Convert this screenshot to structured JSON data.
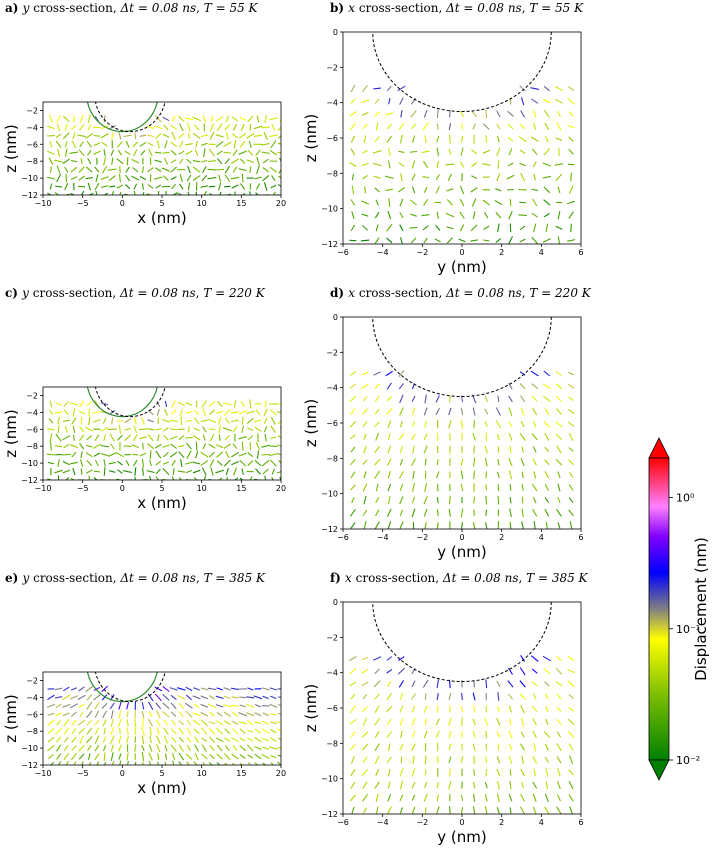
{
  "chart_data": [
    {
      "id": "a",
      "type": "quiver",
      "title": {
        "letter": "a)",
        "axis": "y",
        "text": " cross-section, ",
        "dt": "Δt = 0.08 ns",
        "sep": ", ",
        "temp": "T = 55 K"
      },
      "xlabel": "x (nm)",
      "ylabel": "z (nm)",
      "xlim": [
        -10,
        20
      ],
      "ylim": [
        -12,
        -1
      ],
      "xticks": [
        -10,
        -5,
        0,
        5,
        10,
        15,
        20
      ],
      "yticks": [
        -2,
        -4,
        -6,
        -8,
        -10,
        -12
      ],
      "xtick_labels": [
        "−10",
        "−5",
        "0",
        "5",
        "10",
        "15",
        "20"
      ],
      "ytick_labels": [
        "−2",
        "−4",
        "−6",
        "−8",
        "−10",
        "−12"
      ],
      "tip_circle": {
        "center": [
          1,
          0
        ],
        "radius": 4.5,
        "style": "dashed",
        "color": "#000000"
      },
      "solid_circle": {
        "center": [
          0,
          0
        ],
        "radius": 4.5,
        "color": "#2e8b2e"
      },
      "field": {
        "nx": 31,
        "x_range": [
          -9,
          20
        ],
        "z_range": [
          -3,
          -12
        ],
        "nz": 10,
        "pattern": "disordered",
        "level_surface": 0.06,
        "level_deep": 0.015
      }
    },
    {
      "id": "b",
      "type": "quiver",
      "title": {
        "letter": "b)",
        "axis": "x",
        "text": " cross-section, ",
        "dt": "Δt = 0.08 ns",
        "sep": ", ",
        "temp": "T = 55 K"
      },
      "xlabel": "y (nm)",
      "ylabel": "z (nm)",
      "xlim": [
        -6,
        6
      ],
      "ylim": [
        -12,
        0
      ],
      "xticks": [
        -6,
        -4,
        -2,
        0,
        2,
        4,
        6
      ],
      "yticks": [
        0,
        -2,
        -4,
        -6,
        -8,
        -10,
        -12
      ],
      "xtick_labels": [
        "−6",
        "−4",
        "−2",
        "0",
        "2",
        "4",
        "6"
      ],
      "ytick_labels": [
        "0",
        "−2",
        "−4",
        "−6",
        "−8",
        "−10",
        "−12"
      ],
      "tip_circle": {
        "center": [
          0,
          0
        ],
        "radius": 4.5,
        "style": "dashed",
        "color": "#000000"
      },
      "field": {
        "nx": 19,
        "x_range": [
          -5.5,
          5.5
        ],
        "z_range": [
          -3.2,
          -11.8
        ],
        "nz": 13,
        "pattern": "radial-weak",
        "level_surface": 0.09,
        "level_deep": 0.015
      }
    },
    {
      "id": "c",
      "type": "quiver",
      "title": {
        "letter": "c)",
        "axis": "y",
        "text": " cross-section, ",
        "dt": "Δt = 0.08 ns",
        "sep": ", ",
        "temp": "T = 220 K"
      },
      "xlabel": "x (nm)",
      "ylabel": "z (nm)",
      "xlim": [
        -10,
        20
      ],
      "ylim": [
        -12,
        -1
      ],
      "xticks": [
        -10,
        -5,
        0,
        5,
        10,
        15,
        20
      ],
      "yticks": [
        -2,
        -4,
        -6,
        -8,
        -10,
        -12
      ],
      "xtick_labels": [
        "−10",
        "−5",
        "0",
        "5",
        "10",
        "15",
        "20"
      ],
      "ytick_labels": [
        "−2",
        "−4",
        "−6",
        "−8",
        "−10",
        "−12"
      ],
      "tip_circle": {
        "center": [
          1,
          0
        ],
        "radius": 4.5,
        "style": "dashed",
        "color": "#000000"
      },
      "solid_circle": {
        "center": [
          0,
          0
        ],
        "radius": 4.5,
        "color": "#2e8b2e"
      },
      "field": {
        "nx": 31,
        "x_range": [
          -9,
          20
        ],
        "z_range": [
          -3,
          -12
        ],
        "nz": 10,
        "pattern": "disordered",
        "level_surface": 0.07,
        "level_deep": 0.015
      }
    },
    {
      "id": "d",
      "type": "quiver",
      "title": {
        "letter": "d)",
        "axis": "x",
        "text": " cross-section, ",
        "dt": "Δt = 0.08 ns",
        "sep": ", ",
        "temp": "T = 220 K"
      },
      "xlabel": "y (nm)",
      "ylabel": "z (nm)",
      "xlim": [
        -6,
        6
      ],
      "ylim": [
        -12,
        0
      ],
      "xticks": [
        -6,
        -4,
        -2,
        0,
        2,
        4,
        6
      ],
      "yticks": [
        0,
        -2,
        -4,
        -6,
        -8,
        -10,
        -12
      ],
      "xtick_labels": [
        "−6",
        "−4",
        "−2",
        "0",
        "2",
        "4",
        "6"
      ],
      "ytick_labels": [
        "0",
        "−2",
        "−4",
        "−6",
        "−8",
        "−10",
        "−12"
      ],
      "tip_circle": {
        "center": [
          0,
          0
        ],
        "radius": 4.5,
        "style": "dashed",
        "color": "#000000"
      },
      "field": {
        "nx": 19,
        "x_range": [
          -5.5,
          5.5
        ],
        "z_range": [
          -3.2,
          -11.8
        ],
        "nz": 13,
        "pattern": "radial",
        "level_surface": 0.09,
        "level_deep": 0.02
      }
    },
    {
      "id": "e",
      "type": "quiver",
      "title": {
        "letter": "e)",
        "axis": "y",
        "text": " cross-section, ",
        "dt": "Δt = 0.08 ns",
        "sep": ", ",
        "temp": "T = 385 K"
      },
      "xlabel": "x (nm)",
      "ylabel": "z (nm)",
      "xlim": [
        -10,
        20
      ],
      "ylim": [
        -12,
        -1
      ],
      "xticks": [
        -10,
        -5,
        0,
        5,
        10,
        15,
        20
      ],
      "yticks": [
        -2,
        -4,
        -6,
        -8,
        -10,
        -12
      ],
      "xtick_labels": [
        "−10",
        "−5",
        "0",
        "5",
        "10",
        "15",
        "20"
      ],
      "ytick_labels": [
        "−2",
        "−4",
        "−6",
        "−8",
        "−10",
        "−12"
      ],
      "tip_circle": {
        "center": [
          1,
          0
        ],
        "radius": 4.5,
        "style": "dashed",
        "color": "#000000"
      },
      "solid_circle": {
        "center": [
          0,
          0
        ],
        "radius": 4.5,
        "color": "#2e8b2e"
      },
      "field": {
        "nx": 31,
        "x_range": [
          -9,
          20
        ],
        "z_range": [
          -3,
          -12
        ],
        "nz": 10,
        "pattern": "radial",
        "level_surface": 0.2,
        "level_deep": 0.025
      }
    },
    {
      "id": "f",
      "type": "quiver",
      "title": {
        "letter": "f)",
        "axis": "x",
        "text": " cross-section, ",
        "dt": "Δt = 0.08 ns",
        "sep": ", ",
        "temp": "T = 385 K"
      },
      "xlabel": "y (nm)",
      "ylabel": "z (nm)",
      "xlim": [
        -6,
        6
      ],
      "ylim": [
        -12,
        0
      ],
      "xticks": [
        -6,
        -4,
        -2,
        0,
        2,
        4,
        6
      ],
      "yticks": [
        0,
        -2,
        -4,
        -6,
        -8,
        -10,
        -12
      ],
      "xtick_labels": [
        "−6",
        "−4",
        "−2",
        "0",
        "2",
        "4",
        "6"
      ],
      "ytick_labels": [
        "0",
        "−2",
        "−4",
        "−6",
        "−8",
        "−10",
        "−12"
      ],
      "tip_circle": {
        "center": [
          0,
          0
        ],
        "radius": 4.5,
        "style": "dashed",
        "color": "#000000"
      },
      "field": {
        "nx": 19,
        "x_range": [
          -5.5,
          5.5
        ],
        "z_range": [
          -3.2,
          -11.8
        ],
        "nz": 13,
        "pattern": "radial",
        "level_surface": 0.12,
        "level_deep": 0.03
      }
    }
  ],
  "colorbar": {
    "label": "Displacement (nm)",
    "scale": "log",
    "range": [
      0.01,
      2
    ],
    "ticks": [
      0.01,
      0.1,
      1
    ],
    "tick_labels": [
      "10⁻²",
      "10⁻¹",
      "10⁰"
    ],
    "extend": "both",
    "colors": [
      "#008000",
      "#7fc000",
      "#ffff00",
      "#808080",
      "#0000ff",
      "#8000ff",
      "#ff80ff",
      "#ff0000"
    ]
  }
}
